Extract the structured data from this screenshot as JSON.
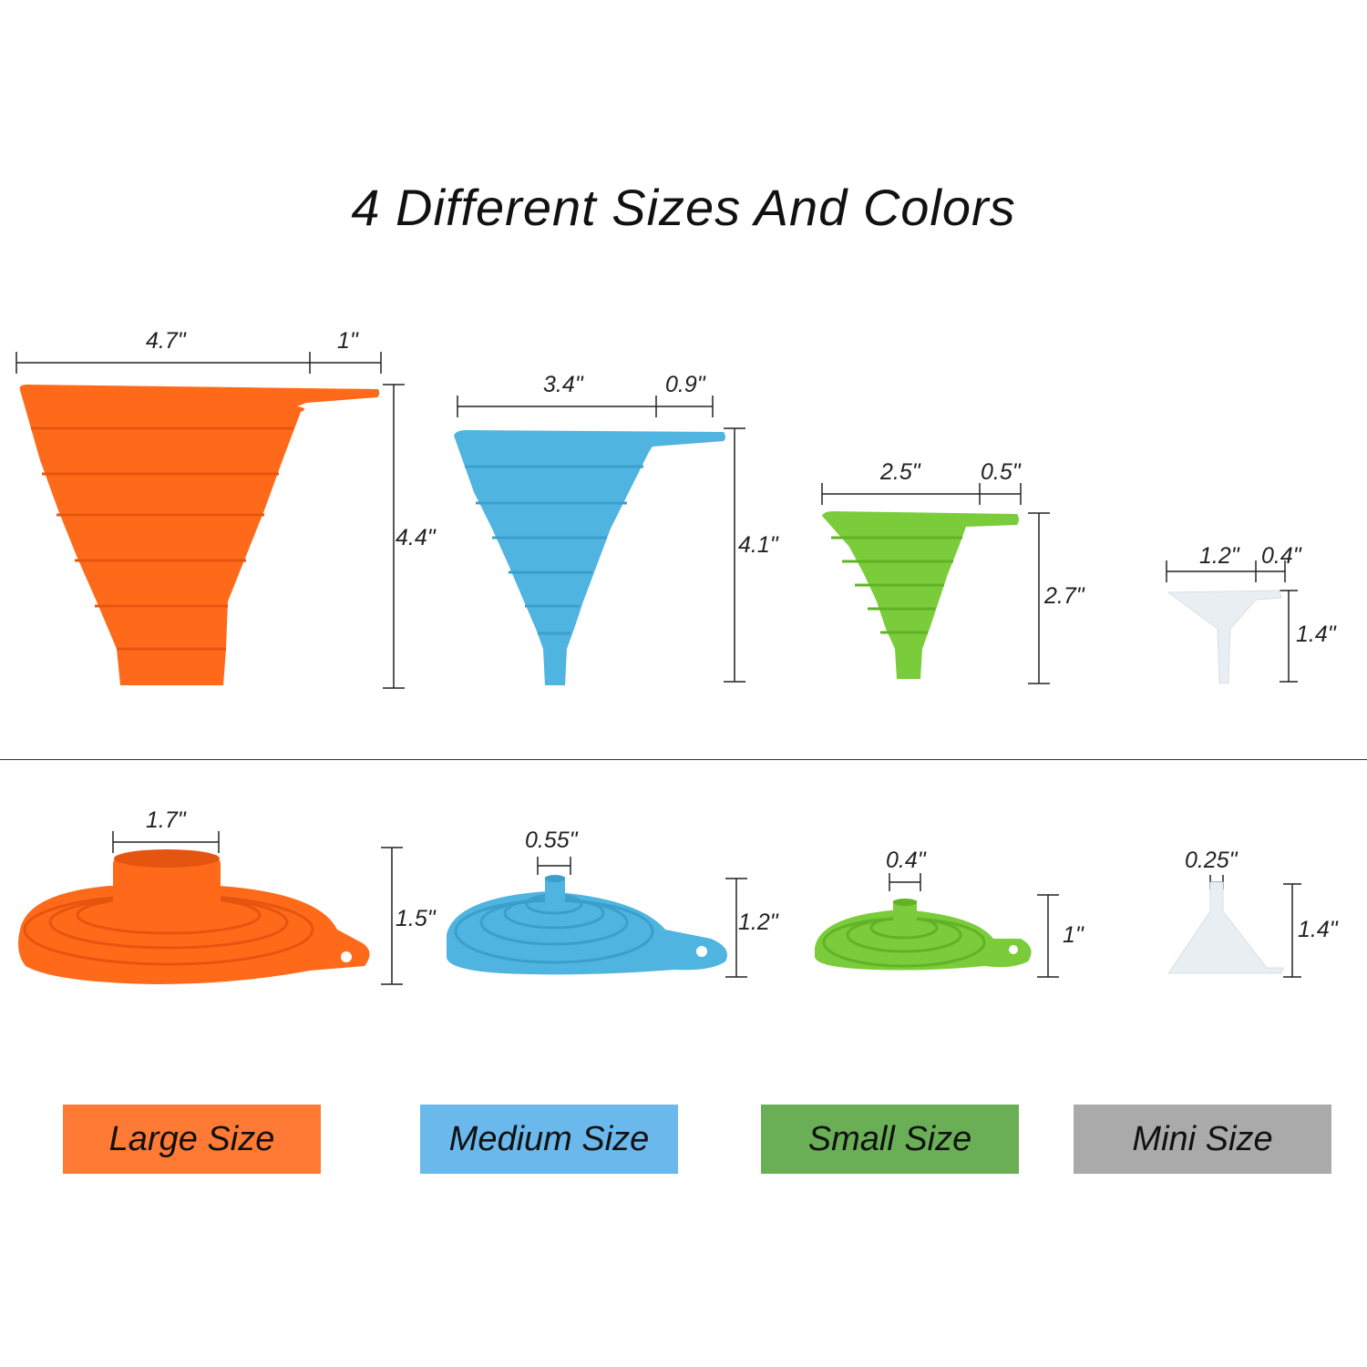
{
  "title": "4 Different Sizes And Colors",
  "colors": {
    "large": "#FF6A1A",
    "medium": "#4FB4E0",
    "small": "#7ACC3A",
    "mini": "#E8EEF2"
  },
  "top_row": {
    "large": {
      "width": "4.7\"",
      "handle": "1\"",
      "height": "4.4\""
    },
    "medium": {
      "width": "3.4\"",
      "handle": "0.9\"",
      "height": "4.1\""
    },
    "small": {
      "width": "2.5\"",
      "handle": "0.5\"",
      "height": "2.7\""
    },
    "mini": {
      "width": "1.2\"",
      "handle": "0.4\"",
      "height": "1.4\""
    }
  },
  "bottom_row": {
    "large": {
      "spout": "1.7\"",
      "height": "1.5\""
    },
    "medium": {
      "spout": "0.55\"",
      "height": "1.2\""
    },
    "small": {
      "spout": "0.4\"",
      "height": "1\""
    },
    "mini": {
      "spout": "0.25\"",
      "height": "1.4\""
    }
  },
  "size_labels": {
    "large": "Large Size",
    "medium": "Medium Size",
    "small": "Small Size",
    "mini": "Mini Size"
  },
  "size_label_colors": {
    "large": "#FF7A35",
    "medium": "#6AB8EC",
    "small": "#6AAF56",
    "mini": "#AAAAAA"
  }
}
